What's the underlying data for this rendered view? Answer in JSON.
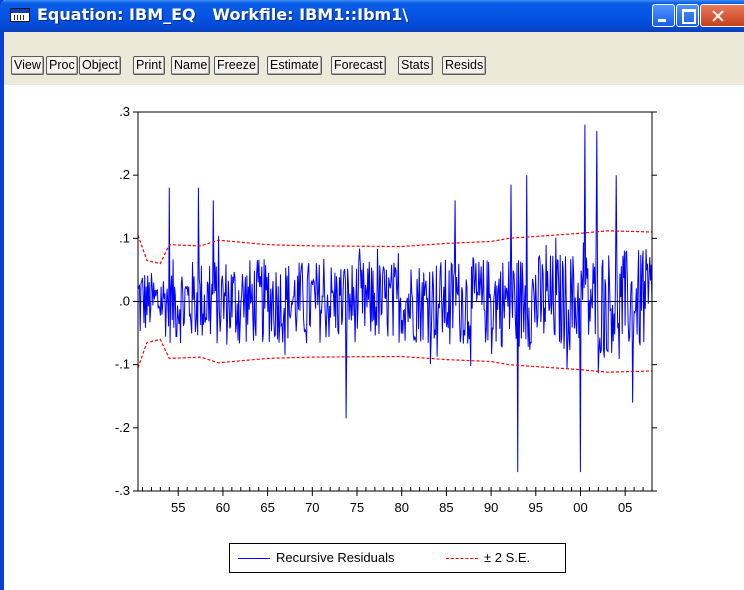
{
  "window": {
    "title": "Equation: IBM_EQ   Workfile: IBM1::Ibm1\\",
    "title_color": "#ffffff",
    "titlebar_color": "#0554e3"
  },
  "toolbar": {
    "buttons": [
      "View",
      "Proc",
      "Object",
      "Print",
      "Name",
      "Freeze",
      "Estimate",
      "Forecast",
      "Stats",
      "Resids"
    ]
  },
  "chart_data": {
    "type": "line",
    "title": "",
    "xlabel": "",
    "ylabel": "",
    "ylim": [
      -0.3,
      0.3
    ],
    "xlim": [
      1950.5,
      2008
    ],
    "y_ticks": [
      ".3",
      ".2",
      ".1",
      ".0",
      "-.1",
      "-.2",
      "-.3"
    ],
    "y_tick_values": [
      0.3,
      0.2,
      0.1,
      0.0,
      -0.1,
      -0.2,
      -0.3
    ],
    "x_ticks": [
      "55",
      "60",
      "65",
      "70",
      "75",
      "80",
      "85",
      "90",
      "95",
      "00",
      "05"
    ],
    "x_tick_values": [
      1955,
      1960,
      1965,
      1970,
      1975,
      1980,
      1985,
      1990,
      1995,
      2000,
      2005
    ],
    "legend_position": "bottom",
    "series": [
      {
        "name": "Recursive Residuals",
        "color": "#0000ff",
        "style": "solid",
        "peaks": [
          {
            "x": 1954.0,
            "y": 0.18
          },
          {
            "x": 1957.3,
            "y": 0.18
          },
          {
            "x": 1958.9,
            "y": 0.16
          },
          {
            "x": 1973.8,
            "y": -0.185
          },
          {
            "x": 1986.0,
            "y": 0.16
          },
          {
            "x": 1992.2,
            "y": 0.185
          },
          {
            "x": 1993.0,
            "y": -0.27
          },
          {
            "x": 1994.0,
            "y": 0.2
          },
          {
            "x": 2000.0,
            "y": -0.27
          },
          {
            "x": 2000.5,
            "y": 0.28
          },
          {
            "x": 2001.8,
            "y": 0.27
          },
          {
            "x": 2004.0,
            "y": 0.2
          },
          {
            "x": 2005.8,
            "y": -0.16
          }
        ],
        "typical_amplitude": 0.05
      },
      {
        "name": "± 2 S.E.",
        "color": "#ff0000",
        "style": "dashed",
        "upper": [
          {
            "x": 1950.5,
            "y": 0.105
          },
          {
            "x": 1951.5,
            "y": 0.065
          },
          {
            "x": 1953.0,
            "y": 0.06
          },
          {
            "x": 1954.0,
            "y": 0.09
          },
          {
            "x": 1957.5,
            "y": 0.088
          },
          {
            "x": 1959.5,
            "y": 0.097
          },
          {
            "x": 1965.0,
            "y": 0.09
          },
          {
            "x": 1970.0,
            "y": 0.088
          },
          {
            "x": 1980.0,
            "y": 0.087
          },
          {
            "x": 1985.0,
            "y": 0.092
          },
          {
            "x": 1990.0,
            "y": 0.095
          },
          {
            "x": 1992.0,
            "y": 0.1
          },
          {
            "x": 1997.0,
            "y": 0.105
          },
          {
            "x": 2000.0,
            "y": 0.108
          },
          {
            "x": 2003.0,
            "y": 0.112
          },
          {
            "x": 2008.0,
            "y": 0.11
          }
        ],
        "lower": [
          {
            "x": 1950.5,
            "y": -0.105
          },
          {
            "x": 1951.5,
            "y": -0.065
          },
          {
            "x": 1953.0,
            "y": -0.06
          },
          {
            "x": 1954.0,
            "y": -0.09
          },
          {
            "x": 1957.5,
            "y": -0.088
          },
          {
            "x": 1959.5,
            "y": -0.097
          },
          {
            "x": 1965.0,
            "y": -0.09
          },
          {
            "x": 1970.0,
            "y": -0.088
          },
          {
            "x": 1980.0,
            "y": -0.087
          },
          {
            "x": 1985.0,
            "y": -0.092
          },
          {
            "x": 1990.0,
            "y": -0.095
          },
          {
            "x": 1992.0,
            "y": -0.1
          },
          {
            "x": 1997.0,
            "y": -0.105
          },
          {
            "x": 2000.0,
            "y": -0.108
          },
          {
            "x": 2003.0,
            "y": -0.112
          },
          {
            "x": 2008.0,
            "y": -0.11
          }
        ]
      }
    ]
  },
  "legend": {
    "residuals_label": "Recursive Residuals",
    "se_label": "± 2 S.E."
  }
}
